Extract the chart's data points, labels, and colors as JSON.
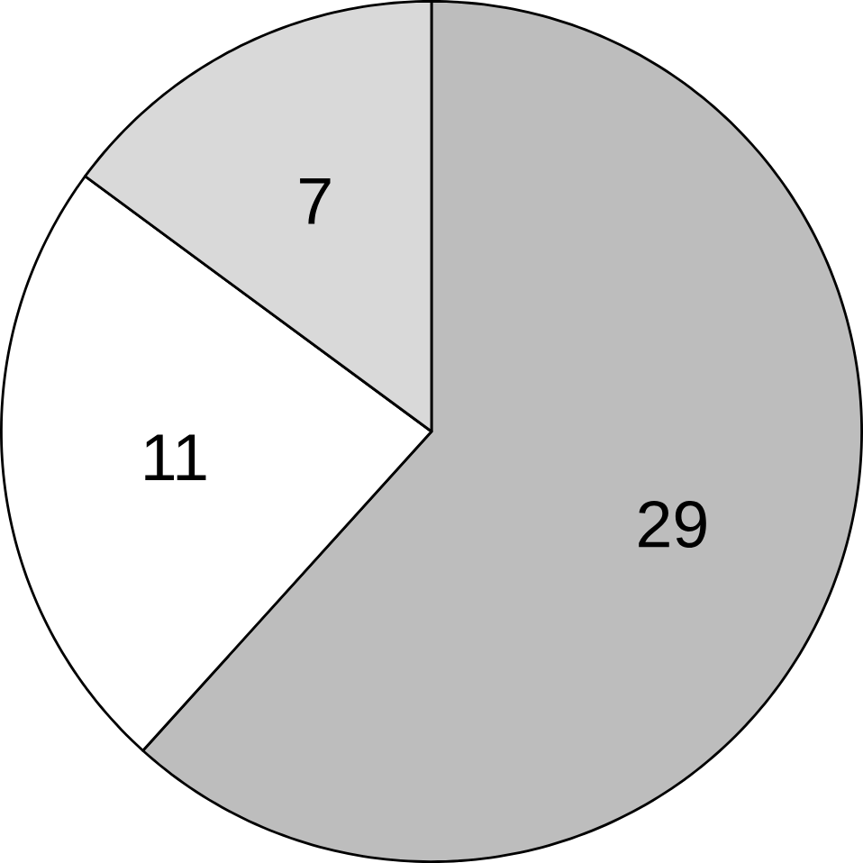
{
  "chart_data": {
    "type": "pie",
    "categories": [
      null,
      null,
      null
    ],
    "values": [
      29,
      11,
      7
    ],
    "colors": [
      "#bdbdbd",
      "#ffffff",
      "#d9d9d9"
    ],
    "data_labels": true
  }
}
